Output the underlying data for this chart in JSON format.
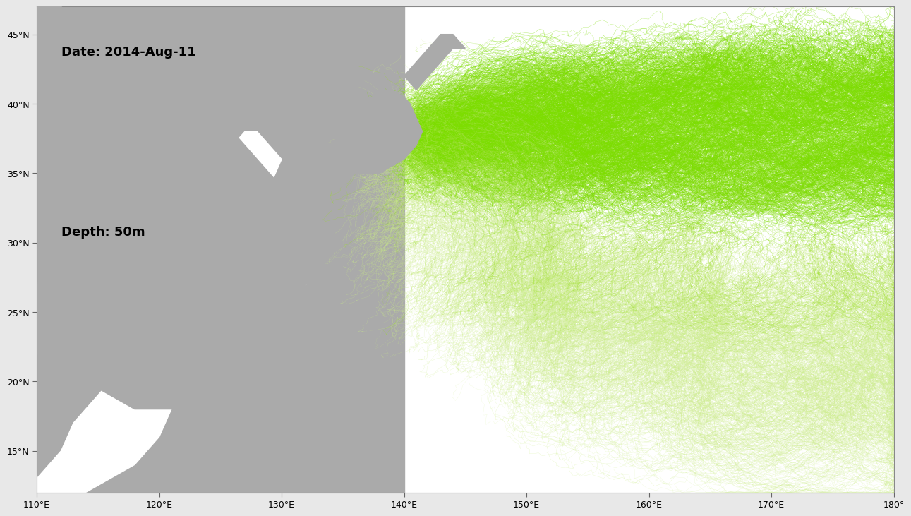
{
  "lon_min": 110,
  "lon_max": 180,
  "lat_min": 12,
  "lat_max": 47,
  "x_ticks": [
    110,
    120,
    130,
    140,
    150,
    160,
    170,
    180
  ],
  "y_ticks": [
    15,
    20,
    25,
    30,
    35,
    40,
    45
  ],
  "x_tick_labels": [
    "110°E",
    "120°E",
    "130°E",
    "140°E",
    "150°E",
    "160°E",
    "170°E",
    "180°"
  ],
  "y_tick_labels": [
    "15°N",
    "20°N",
    "25°N",
    "30°N",
    "35°N",
    "40°N",
    "45°N"
  ],
  "date_text": "Date: 2014-Aug-11",
  "depth_text": "Depth: 50m",
  "ocean_color": "#ffffff",
  "land_color": "#aaaaaa",
  "fig_bg_color": "#e8e8e8",
  "border_color": "#888888",
  "figsize": [
    12.8,
    7.2
  ],
  "dpi": 100,
  "fukushima_lon": 141.0,
  "fukushima_lat": 37.4,
  "num_particles": 2000,
  "seed": 42,
  "dense_color": "#7ddd00",
  "mid_color": "#99dd22",
  "sparse_color": "#ccee88"
}
